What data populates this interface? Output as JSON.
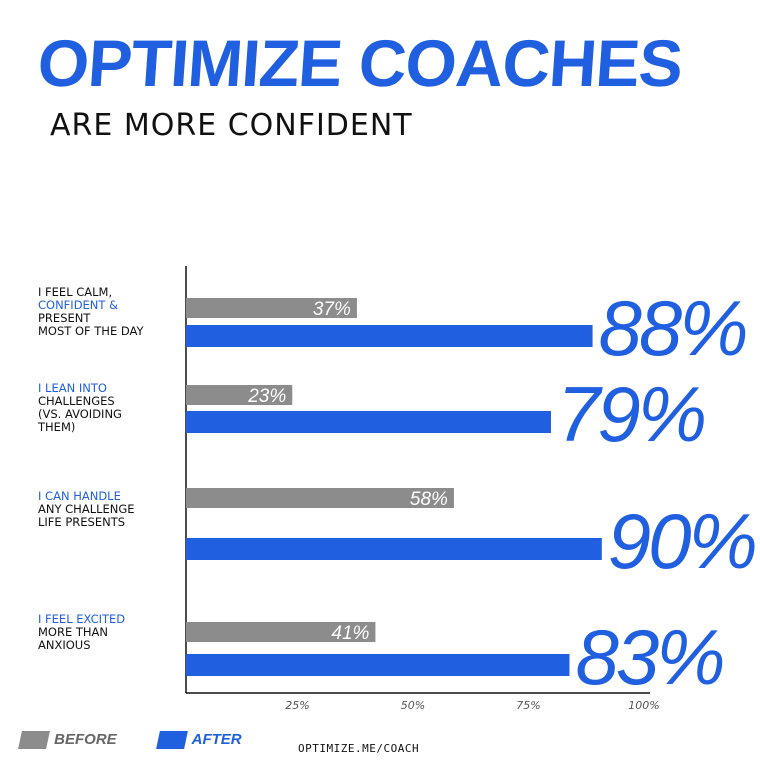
{
  "header": {
    "title": "OPTIMIZE COACHES",
    "subtitle": "ARE MORE CONFIDENT"
  },
  "labels": [
    {
      "lines": [
        "I FEEL CALM,",
        "CONFIDENT &",
        "PRESENT",
        "MOST OF THE DAY"
      ],
      "highlight_line": 1
    },
    {
      "lines": [
        "I LEAN INTO",
        "CHALLENGES",
        "(VS. AVOIDING",
        "THEM)"
      ],
      "highlight_line": 0
    },
    {
      "lines": [
        "I CAN HANDLE",
        "ANY CHALLENGE",
        "LIFE PRESENTS"
      ],
      "highlight_line": 0
    },
    {
      "lines": [
        "I FEEL EXCITED",
        "MORE THAN",
        "ANXIOUS"
      ],
      "highlight_line": 0
    }
  ],
  "chart_data": {
    "type": "bar",
    "orientation": "horizontal",
    "categories": [
      "I feel calm, confident & present most of the day",
      "I lean into challenges (vs. avoiding them)",
      "I can handle any challenge life presents",
      "I feel excited more than anxious"
    ],
    "series": [
      {
        "name": "BEFORE",
        "values": [
          37,
          23,
          58,
          41
        ],
        "labels": [
          "37%",
          "23%",
          "58%",
          "41%"
        ],
        "color": "#8c8c8c"
      },
      {
        "name": "AFTER",
        "values": [
          88,
          79,
          90,
          83
        ],
        "labels": [
          "88%",
          "79%",
          "90%",
          "83%"
        ],
        "color": "#1f5fe0"
      }
    ],
    "xlim": [
      0,
      100
    ],
    "xticks": [
      25,
      50,
      75,
      100
    ],
    "xtick_labels": [
      "25%",
      "50%",
      "75%",
      "100%"
    ],
    "legend": "bottom-left"
  },
  "legend": {
    "before_label": "BEFORE",
    "after_label": "AFTER"
  },
  "footer": {
    "url": "OPTIMIZE.ME/COACH"
  },
  "colors": {
    "accent": "#1f5fe0",
    "before": "#8c8c8c",
    "text": "#111111"
  }
}
